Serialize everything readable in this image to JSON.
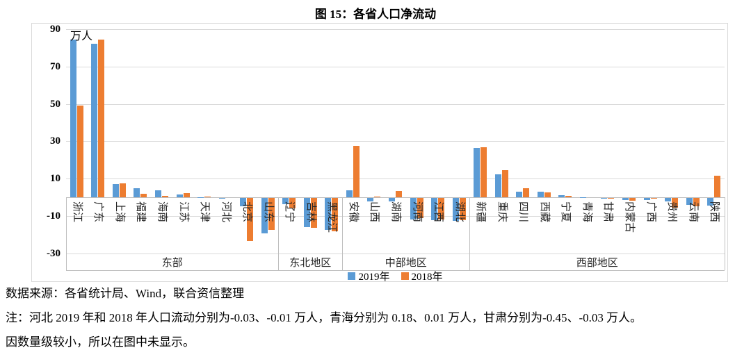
{
  "title": "图 15：各省人口净流动",
  "footer": {
    "source": "数据来源：各省统计局、Wind，联合资信整理",
    "note_line1": "注：河北 2019 年和 2018 年人口流动分别为-0.03、-0.01 万人，青海分别为 0.18、0.01 万人，甘肃分别为-0.45、-0.03 万人。",
    "note_line2": "因数量级较小，所以在图中未显示。"
  },
  "chart_data": {
    "type": "bar",
    "title": "图 15：各省人口净流动",
    "unit_label": "万人",
    "ylabel": "万人",
    "ylim": [
      -30,
      90
    ],
    "y_ticks": [
      90,
      70,
      50,
      30,
      10,
      -10,
      -30
    ],
    "grid": true,
    "legend_position": "bottom",
    "series_names": [
      "2019年",
      "2018年"
    ],
    "series_colors": [
      "#5B9BD5",
      "#ED7D31"
    ],
    "regions": [
      {
        "name": "东部",
        "categories": [
          "浙江",
          "广东",
          "上海",
          "福建",
          "海南",
          "江苏",
          "天津",
          "河北",
          "北京",
          "山东"
        ],
        "series": [
          {
            "name": "2019年",
            "values": [
              84.4,
              82.3,
              7.1,
              4.7,
              3.7,
              1.6,
              0.1,
              -0.03,
              -4.5,
              -19
            ]
          },
          {
            "name": "2018年",
            "values": [
              49.0,
              84.3,
              7.5,
              2.0,
              0.7,
              2.2,
              0.5,
              -0.01,
              -23.0,
              -17.0
            ]
          }
        ]
      },
      {
        "name": "东北地区",
        "categories": [
          "辽宁",
          "吉林",
          "黑龙江"
        ],
        "series": [
          {
            "name": "2019年",
            "values": [
              -3.5,
              -15.5,
              -17.0
            ]
          },
          {
            "name": "2018年",
            "values": [
              -5.5,
              -16.0,
              -18.0
            ]
          }
        ]
      },
      {
        "name": "中部地区",
        "categories": [
          "安徽",
          "山西",
          "湖南",
          "河南",
          "江西",
          "湖北"
        ],
        "series": [
          {
            "name": "2019年",
            "values": [
              3.7,
              -1.7,
              -1.9,
              -11.5,
              -12.0,
              -12.4
            ]
          },
          {
            "name": "2018年",
            "values": [
              27.6,
              0.2,
              3.5,
              -10.8,
              -11.5,
              -12.0
            ]
          }
        ]
      },
      {
        "name": "西部地区",
        "categories": [
          "新疆",
          "重庆",
          "四川",
          "西藏",
          "宁夏",
          "青海",
          "甘肃",
          "内蒙古",
          "广西",
          "贵州",
          "云南",
          "陕西"
        ],
        "series": [
          {
            "name": "2019年",
            "values": [
              26.5,
              12.4,
              3.0,
              3.0,
              1.3,
              0.18,
              -0.45,
              -1.2,
              -1.2,
              -1.9,
              -3.8,
              -4.1
            ]
          },
          {
            "name": "2018年",
            "values": [
              26.8,
              14.4,
              4.9,
              2.5,
              0.8,
              0.01,
              -0.03,
              -1.5,
              -0.4,
              -5.1,
              -4.3,
              11.5
            ]
          }
        ]
      }
    ]
  }
}
